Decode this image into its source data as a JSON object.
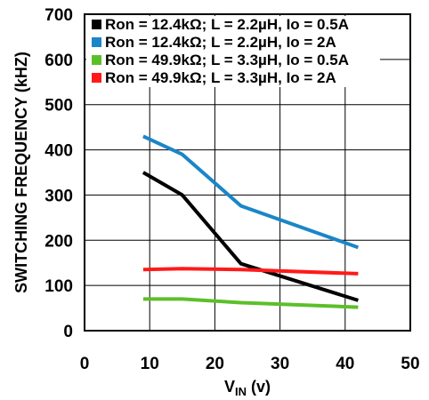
{
  "chart_data": {
    "type": "line",
    "xlabel": {
      "main": "V",
      "sub": "IN",
      "unit": " (v)"
    },
    "ylabel": "SWITCHING FREQUENCY (kHZ)",
    "xlim": [
      0,
      50
    ],
    "ylim": [
      0,
      700
    ],
    "xticks": [
      "0",
      "10",
      "20",
      "30",
      "40",
      "50"
    ],
    "yticks": [
      "0",
      "100",
      "200",
      "300",
      "400",
      "500",
      "600",
      "700"
    ],
    "grid": true,
    "legend_position": "top-left-inside",
    "series": [
      {
        "name": "Ron = 12.4kΩ; L = 2.2µH, Io = 0.5A",
        "color": "#000000",
        "x": [
          9,
          15,
          24,
          42
        ],
        "y": [
          350,
          300,
          148,
          67
        ]
      },
      {
        "name": "Ron = 12.4kΩ; L = 2.2µH, Io = 2A",
        "color": "#1a86c8",
        "x": [
          9,
          15,
          24,
          42
        ],
        "y": [
          430,
          390,
          276,
          184
        ]
      },
      {
        "name": "Ron = 49.9kΩ; L = 3.3µH, Io = 0.5A",
        "color": "#5cbf2a",
        "x": [
          9,
          15,
          24,
          42
        ],
        "y": [
          70,
          70,
          62,
          52
        ]
      },
      {
        "name": "Ron = 49.9kΩ; L = 3.3µH, Io = 2A",
        "color": "#ff1a1a",
        "x": [
          9,
          15,
          24,
          42
        ],
        "y": [
          135,
          137,
          135,
          126
        ]
      }
    ]
  }
}
